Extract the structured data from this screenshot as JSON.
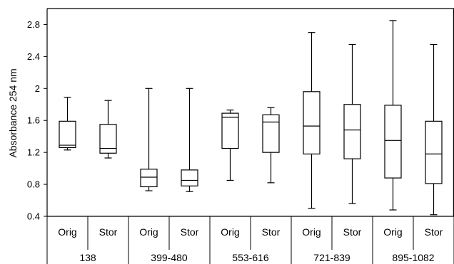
{
  "chart_data": {
    "type": "boxplot",
    "title": "",
    "xlabel": "",
    "ylabel": "Absorbance 254 nm",
    "ylim": [
      0.4,
      3.0
    ],
    "y_ticks": [
      0.4,
      0.8,
      1.2,
      1.6,
      2,
      2.4,
      2.8
    ],
    "y_tick_labels": [
      "0.4",
      "0.8",
      "1.2",
      "1.6",
      "2",
      "2.4",
      "2.8"
    ],
    "grid": false,
    "legend": "none",
    "colors": {
      "axis": "#000000",
      "box_fill": "#ffffff",
      "box_stroke": "#000000"
    },
    "groups": [
      {
        "label": "138",
        "boxes": [
          {
            "label": "Orig",
            "min": 1.23,
            "q1": 1.26,
            "median": 1.29,
            "q3": 1.59,
            "max": 1.89
          },
          {
            "label": "Stor",
            "min": 1.13,
            "q1": 1.19,
            "median": 1.25,
            "q3": 1.55,
            "max": 1.85
          }
        ]
      },
      {
        "label": "399-480",
        "boxes": [
          {
            "label": "Orig",
            "min": 0.72,
            "q1": 0.77,
            "median": 0.89,
            "q3": 0.99,
            "max": 2.0
          },
          {
            "label": "Stor",
            "min": 0.71,
            "q1": 0.78,
            "median": 0.85,
            "q3": 0.98,
            "max": 2.0
          }
        ]
      },
      {
        "label": "553-616",
        "boxes": [
          {
            "label": "Orig",
            "min": 0.85,
            "q1": 1.25,
            "median": 1.64,
            "q3": 1.69,
            "max": 1.73
          },
          {
            "label": "Stor",
            "min": 0.82,
            "q1": 1.2,
            "median": 1.58,
            "q3": 1.67,
            "max": 1.76
          }
        ]
      },
      {
        "label": "721-839",
        "boxes": [
          {
            "label": "Orig",
            "min": 0.5,
            "q1": 1.18,
            "median": 1.53,
            "q3": 1.96,
            "max": 2.7
          },
          {
            "label": "Stor",
            "min": 0.56,
            "q1": 1.12,
            "median": 1.48,
            "q3": 1.8,
            "max": 2.55
          }
        ]
      },
      {
        "label": "895-1082",
        "boxes": [
          {
            "label": "Orig",
            "min": 0.48,
            "q1": 0.88,
            "median": 1.35,
            "q3": 1.79,
            "max": 2.85
          },
          {
            "label": "Stor",
            "min": 0.42,
            "q1": 0.81,
            "median": 1.18,
            "q3": 1.59,
            "max": 2.55
          }
        ]
      }
    ]
  }
}
